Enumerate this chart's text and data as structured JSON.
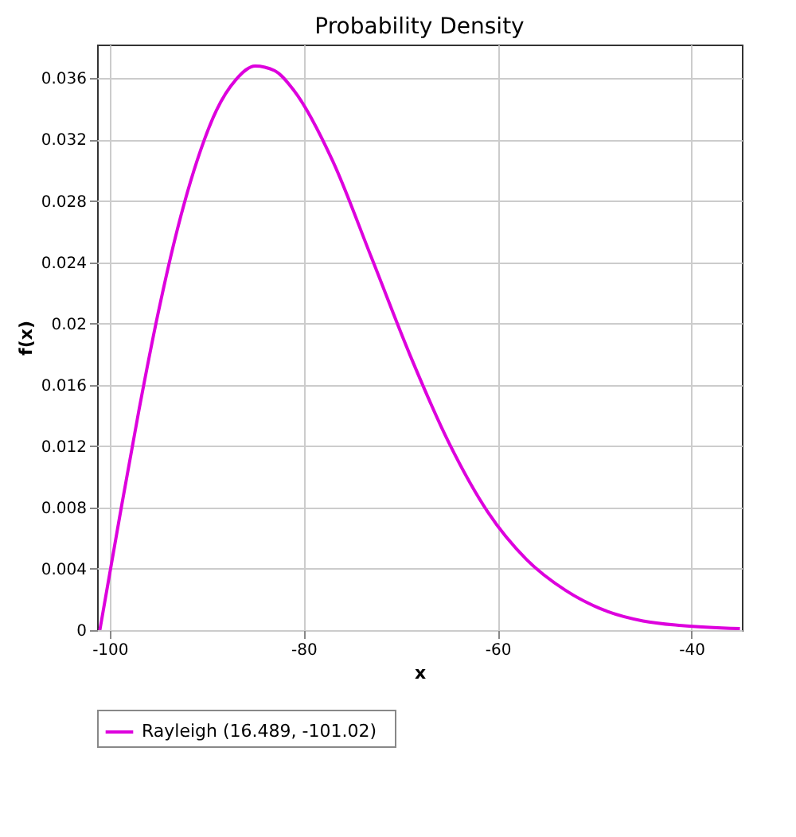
{
  "chart_data": {
    "type": "line",
    "title": "Probability Density",
    "xlabel": "x",
    "ylabel": "f(x)",
    "x": [
      -101.02,
      -99,
      -97,
      -95,
      -93,
      -91,
      -89,
      -87,
      -85,
      -83,
      -81,
      -77,
      -73,
      -69,
      -65,
      -61,
      -57,
      -53,
      -49,
      -45,
      -41,
      -35
    ],
    "series": [
      {
        "name": "Rayleigh  (16.489,  -101.02)",
        "color": "#dd00dd",
        "values": [
          0,
          0.0073,
          0.0143,
          0.0207,
          0.0262,
          0.0306,
          0.0339,
          0.0359,
          0.0368,
          0.0365,
          0.0352,
          0.0306,
          0.0243,
          0.0179,
          0.0122,
          0.0077,
          0.0046,
          0.0026,
          0.0013,
          0.0006,
          0.0003,
          0.0001
        ]
      }
    ],
    "xlim": [
      -101.3,
      -34.8
    ],
    "xticks": [
      -100,
      -80,
      -60,
      -40
    ],
    "ylim": [
      0,
      0.0382
    ],
    "yticks": [
      0,
      0.004,
      0.008,
      0.012,
      0.016,
      0.02,
      0.024,
      0.028,
      0.032,
      0.036
    ],
    "grid": true,
    "legend": "bottom",
    "marker": "none",
    "line_style": "solid"
  }
}
